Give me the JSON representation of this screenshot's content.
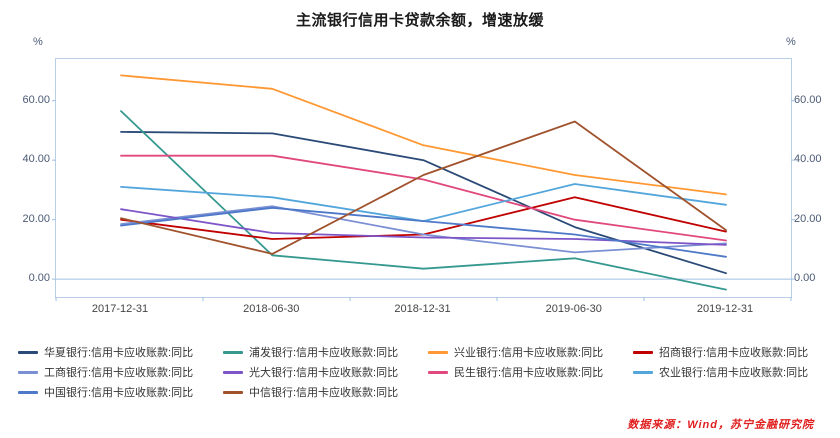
{
  "chart": {
    "title": "主流银行信用卡贷款余额，增速放缓",
    "left_unit": "%",
    "right_unit": "%",
    "source": "数据来源：Wind，苏宁金融研究院"
  },
  "chart_data": {
    "type": "line",
    "title": "主流银行信用卡贷款余额，增速放缓",
    "xlabel": "",
    "ylabel": "%",
    "ylim": [
      -6,
      74
    ],
    "grid": false,
    "legend_position": "bottom",
    "x": [
      "2017-12-31",
      "2018-06-30",
      "2018-12-31",
      "2019-06-30",
      "2019-12-31"
    ],
    "yticks": [
      "0.00",
      "20.00",
      "40.00",
      "60.00"
    ],
    "series": [
      {
        "name": "华夏银行:信用卡应收账款:同比",
        "color": "#2b4a77",
        "values": [
          49.5,
          49.0,
          40.0,
          17.5,
          2.0
        ]
      },
      {
        "name": "浦发银行:信用卡应收账款:同比",
        "color": "#35998f",
        "values": [
          56.5,
          8.0,
          3.5,
          7.0,
          -3.5
        ]
      },
      {
        "name": "兴业银行:信用卡应收账款:同比",
        "color": "#ff9832",
        "values": [
          68.5,
          64.0,
          45.0,
          35.0,
          28.5
        ]
      },
      {
        "name": "招商银行:信用卡应收账款:同比",
        "color": "#c00000",
        "values": [
          20.0,
          13.5,
          15.0,
          27.5,
          16.0
        ]
      },
      {
        "name": "工商银行:信用卡应收账款:同比",
        "color": "#7b8fd4",
        "values": [
          18.5,
          24.5,
          15.0,
          9.0,
          12.0
        ]
      },
      {
        "name": "光大银行:信用卡应收账款:同比",
        "color": "#7d55c7",
        "values": [
          23.5,
          15.5,
          14.0,
          13.5,
          11.5
        ]
      },
      {
        "name": "民生银行:信用卡应收账款:同比",
        "color": "#e0487e",
        "values": [
          41.5,
          41.5,
          33.5,
          20.0,
          13.0
        ]
      },
      {
        "name": "农业银行:信用卡应收账款:同比",
        "color": "#53a6dc",
        "values": [
          31.0,
          27.5,
          19.5,
          32.0,
          25.0
        ]
      },
      {
        "name": "中国银行:信用卡应收账款:同比",
        "color": "#4e79c9",
        "values": [
          18.0,
          24.0,
          19.5,
          15.0,
          7.5
        ]
      },
      {
        "name": "中信银行:信用卡应收账款:同比",
        "color": "#a0522d",
        "values": [
          20.5,
          8.5,
          35.0,
          53.0,
          16.5
        ]
      }
    ]
  }
}
